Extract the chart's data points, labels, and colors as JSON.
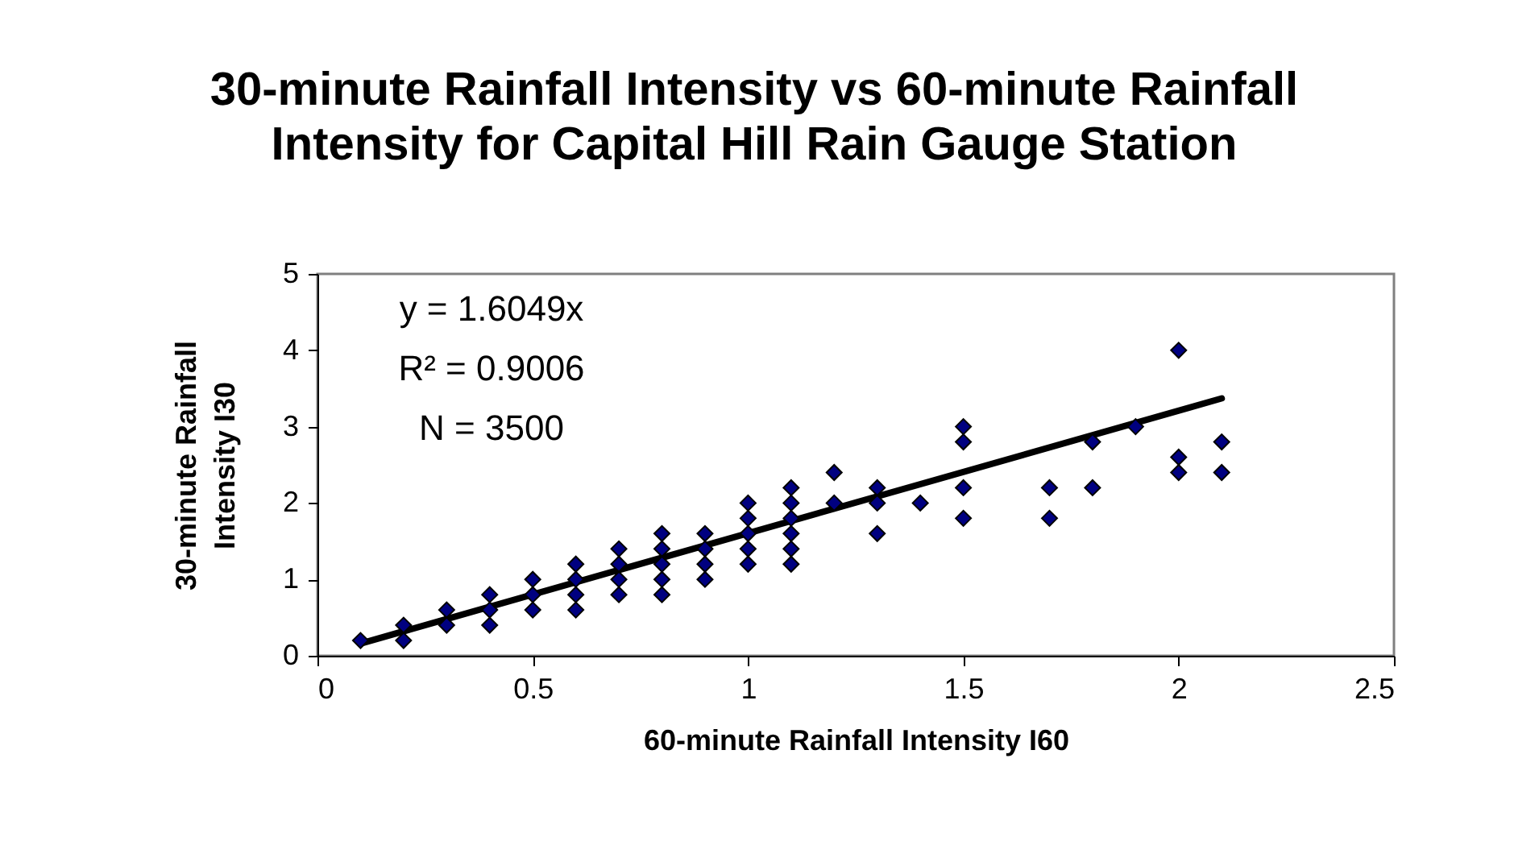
{
  "chart_data": {
    "type": "scatter",
    "title": "30-minute Rainfall Intensity vs 60-minute Rainfall\nIntensity for Capital Hill Rain Gauge Station",
    "xlabel": "60-minute Rainfall Intensity I60",
    "ylabel": "30-minute Rainfall\nIntensity I30",
    "annotations": [
      "y = 1.6049x",
      "R² = 0.9006",
      "N = 3500"
    ],
    "series": [
      {
        "color": "#000080",
        "marker": "diamond",
        "x": [
          0.1,
          0.2,
          0.2,
          0.3,
          0.3,
          0.4,
          0.4,
          0.4,
          0.5,
          0.5,
          0.5,
          0.6,
          0.6,
          0.6,
          0.6,
          0.7,
          0.7,
          0.7,
          0.7,
          0.8,
          0.8,
          0.8,
          0.8,
          0.8,
          0.9,
          0.9,
          0.9,
          0.9,
          1.0,
          1.0,
          1.0,
          1.0,
          1.0,
          1.1,
          1.1,
          1.1,
          1.1,
          1.1,
          1.1,
          1.2,
          1.2,
          1.3,
          1.3,
          1.3,
          1.4,
          1.5,
          1.5,
          1.5,
          1.5,
          1.7,
          1.7,
          1.8,
          1.8,
          1.9,
          2.0,
          2.0,
          2.0,
          2.1,
          2.1
        ],
        "values": [
          0.2,
          0.2,
          0.4,
          0.4,
          0.6,
          0.4,
          0.6,
          0.8,
          0.6,
          0.8,
          1.0,
          0.6,
          0.8,
          1.0,
          1.2,
          0.8,
          1.0,
          1.2,
          1.4,
          0.8,
          1.0,
          1.2,
          1.4,
          1.6,
          1.0,
          1.2,
          1.4,
          1.6,
          1.2,
          1.4,
          1.6,
          1.8,
          2.0,
          1.2,
          1.4,
          1.6,
          1.8,
          2.0,
          2.2,
          2.0,
          2.4,
          1.6,
          2.0,
          2.2,
          2.0,
          1.8,
          2.2,
          2.8,
          3.0,
          1.8,
          2.2,
          2.2,
          2.8,
          3.0,
          2.4,
          2.6,
          4.0,
          2.4,
          2.8
        ]
      },
      {
        "type": "line",
        "color": "#000000",
        "line_style": "solid",
        "x": [
          0.1,
          2.1
        ],
        "values": [
          0.16,
          3.37
        ]
      }
    ],
    "xlim": [
      0,
      2.5
    ],
    "xticks": [
      0,
      0.5,
      1,
      1.5,
      2,
      2.5
    ],
    "ylim": [
      0,
      5
    ],
    "yticks": [
      0,
      1,
      2,
      3,
      4,
      5
    ],
    "grid": false
  }
}
